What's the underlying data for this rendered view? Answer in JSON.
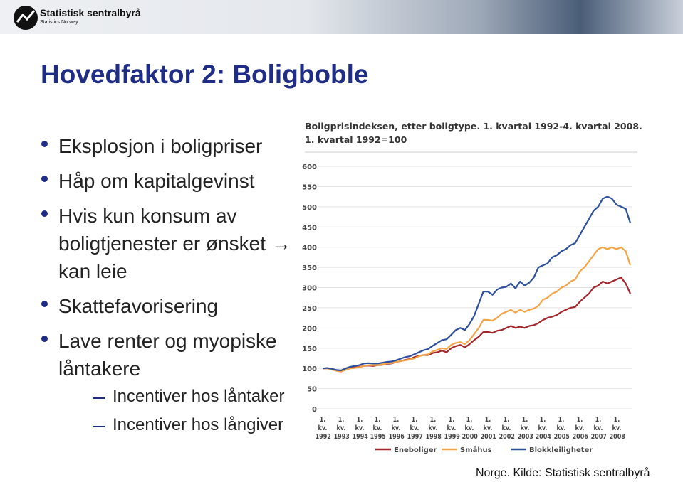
{
  "header": {
    "org": "Statistisk sentralbyrå",
    "org_en": "Statistics Norway"
  },
  "title": "Hovedfaktor 2: Boligboble",
  "bullets": [
    {
      "text": "Eksplosjon i boligpriser"
    },
    {
      "text": "Håp om kapitalgevinst"
    },
    {
      "text": "Hvis kun konsum av boligtjenester er ønsket → kan leie"
    },
    {
      "text": "Skattefavorisering"
    },
    {
      "text": "Lave renter og myopiske låntakere",
      "sub": [
        "Incentiver hos låntaker",
        "Incentiver hos långiver"
      ]
    }
  ],
  "source": "Norge. Kilde: Statistisk sentralbyrå",
  "chart_data": {
    "type": "line",
    "title": "Boligprisindeksen, etter boligtype. 1. kvartal 1992-4. kvartal 2008.",
    "subtitle": "1. kvartal 1992=100",
    "categories": [
      "1. kv. 1992",
      null,
      null,
      null,
      "1. kv. 1993",
      null,
      null,
      null,
      "1. kv. 1994",
      null,
      null,
      null,
      "1. kv. 1995",
      null,
      null,
      null,
      "1. kv. 1996",
      null,
      null,
      null,
      "1. kv. 1997",
      null,
      null,
      null,
      "1. kv. 1998",
      null,
      null,
      null,
      "1. kv. 1999",
      null,
      null,
      null,
      "1. kv. 2000",
      null,
      null,
      null,
      "1. kv. 2001",
      null,
      null,
      null,
      "1. kv. 2002",
      null,
      null,
      null,
      "1. kv. 2003",
      null,
      null,
      null,
      "1. kv. 2004",
      null,
      null,
      null,
      "1. kv. 2005",
      null,
      null,
      null,
      "1. kv. 2006",
      null,
      null,
      null,
      "1. kv. 2007",
      null,
      null,
      null,
      "1. kv. 2008",
      null,
      null,
      null
    ],
    "series": [
      {
        "name": "Eneboliger",
        "color": "#a3262c",
        "values": [
          100,
          100,
          98,
          95,
          94,
          98,
          101,
          102,
          104,
          106,
          107,
          106,
          108,
          109,
          111,
          112,
          116,
          118,
          121,
          123,
          128,
          131,
          133,
          133,
          138,
          140,
          144,
          140,
          150,
          155,
          158,
          152,
          160,
          170,
          178,
          190,
          190,
          188,
          193,
          195,
          200,
          205,
          200,
          203,
          200,
          205,
          207,
          212,
          220,
          225,
          228,
          232,
          240,
          245,
          250,
          252,
          265,
          275,
          285,
          300,
          305,
          315,
          310,
          315,
          320,
          325,
          310,
          285
        ]
      },
      {
        "name": "Småhus",
        "color": "#f3a447",
        "values": [
          100,
          100,
          97,
          94,
          92,
          96,
          100,
          101,
          103,
          106,
          108,
          108,
          108,
          110,
          112,
          113,
          116,
          118,
          120,
          122,
          125,
          130,
          133,
          135,
          142,
          146,
          150,
          148,
          158,
          163,
          165,
          160,
          170,
          185,
          200,
          220,
          220,
          218,
          225,
          235,
          240,
          245,
          238,
          245,
          240,
          245,
          248,
          255,
          270,
          275,
          285,
          290,
          300,
          305,
          315,
          320,
          340,
          350,
          365,
          380,
          395,
          400,
          395,
          400,
          395,
          400,
          390,
          355
        ]
      },
      {
        "name": "Blokkleiligheter",
        "color": "#2d4f9c",
        "values": [
          100,
          101,
          99,
          96,
          95,
          100,
          104,
          106,
          108,
          112,
          113,
          112,
          112,
          114,
          116,
          117,
          120,
          124,
          128,
          130,
          135,
          140,
          145,
          148,
          156,
          163,
          170,
          172,
          183,
          195,
          200,
          195,
          210,
          230,
          260,
          290,
          290,
          282,
          295,
          300,
          302,
          310,
          298,
          315,
          305,
          312,
          325,
          350,
          355,
          360,
          375,
          380,
          390,
          395,
          405,
          410,
          430,
          450,
          470,
          490,
          500,
          520,
          525,
          520,
          505,
          500,
          495,
          460
        ]
      }
    ],
    "ylim": [
      0,
      600
    ],
    "yticks": [
      0,
      50,
      100,
      150,
      200,
      250,
      300,
      350,
      400,
      450,
      500,
      550,
      600
    ],
    "grid": true
  }
}
